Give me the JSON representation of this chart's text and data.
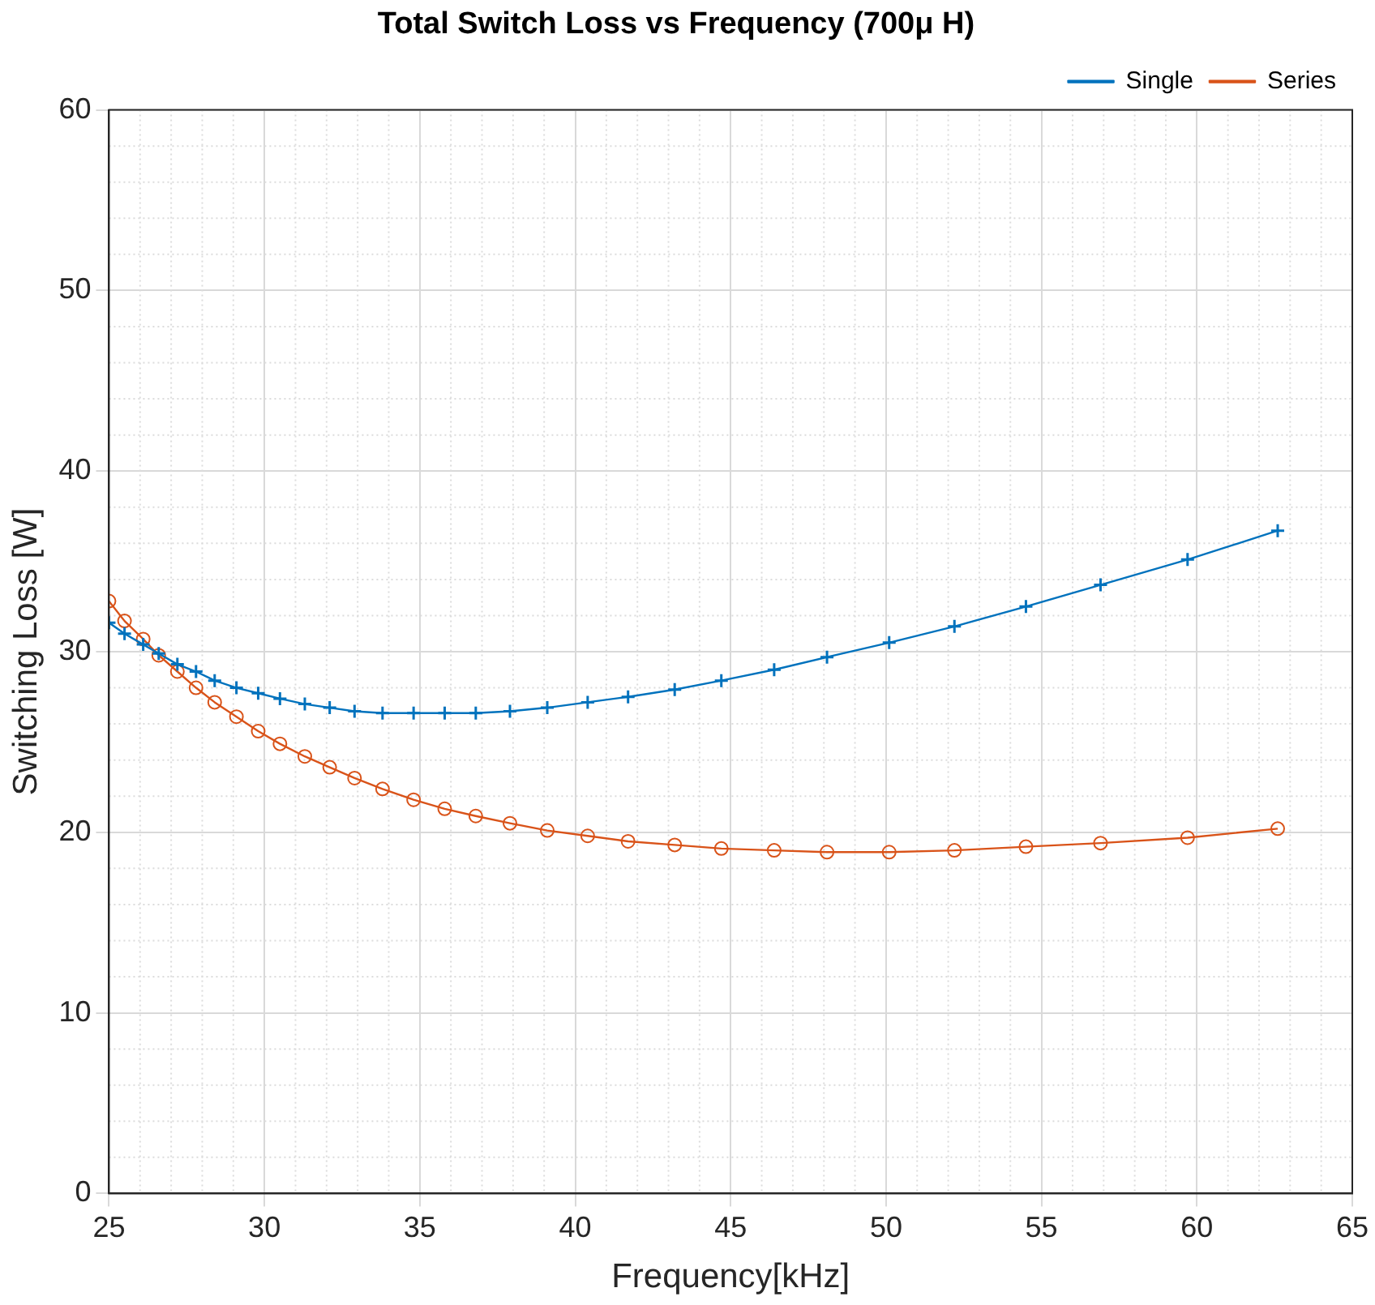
{
  "chart_data": {
    "type": "line",
    "title": "Total Switch Loss vs Frequency (700μ H)",
    "xlabel": "Frequency[kHz]",
    "ylabel": "Switching Loss [W]",
    "x": [
      25.0,
      25.5,
      26.1,
      26.6,
      27.2,
      27.8,
      28.4,
      29.1,
      29.8,
      30.5,
      31.3,
      32.1,
      32.9,
      33.8,
      34.8,
      35.8,
      36.8,
      37.9,
      39.1,
      40.4,
      41.7,
      43.2,
      44.7,
      46.4,
      48.1,
      50.1,
      52.2,
      54.5,
      56.9,
      59.7,
      62.6
    ],
    "series": [
      {
        "name": "Single",
        "color": "#0072bd",
        "marker": "cross",
        "values": [
          31.6,
          31.0,
          30.4,
          29.9,
          29.3,
          28.9,
          28.4,
          28.0,
          27.7,
          27.4,
          27.1,
          26.9,
          26.7,
          26.6,
          26.6,
          26.6,
          26.6,
          26.7,
          26.9,
          27.2,
          27.5,
          27.9,
          28.4,
          29.0,
          29.7,
          30.5,
          31.4,
          32.5,
          33.7,
          35.1,
          36.7
        ]
      },
      {
        "name": "Series",
        "color": "#d95319",
        "marker": "circle",
        "values": [
          32.8,
          31.7,
          30.7,
          29.8,
          28.9,
          28.0,
          27.2,
          26.4,
          25.6,
          24.9,
          24.2,
          23.6,
          23.0,
          22.4,
          21.8,
          21.3,
          20.9,
          20.5,
          20.1,
          19.8,
          19.5,
          19.3,
          19.1,
          19.0,
          18.9,
          18.9,
          19.0,
          19.2,
          19.4,
          19.7,
          20.2
        ]
      }
    ],
    "xlim": [
      25,
      65
    ],
    "xticks": [
      25,
      30,
      35,
      40,
      45,
      50,
      55,
      60,
      65
    ],
    "ylim": [
      0,
      60
    ],
    "yticks": [
      0,
      10,
      20,
      30,
      40,
      50,
      60
    ],
    "grid": true,
    "legend": "top right",
    "line_style": "solid"
  }
}
